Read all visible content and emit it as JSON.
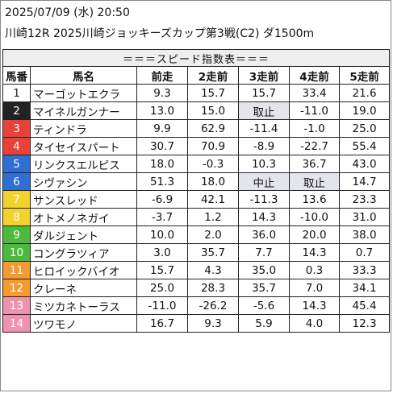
{
  "header": {
    "line1": "2025/07/09 (水) 20:50",
    "line2": "川崎12R 2025川崎ジョッキーズカップ第3戦(C2) ダ1500m"
  },
  "table": {
    "banner": "＝＝＝スピード指数表＝＝＝",
    "columns": [
      "馬番",
      "馬名",
      "前走",
      "2走前",
      "3走前",
      "4走前",
      "5走前"
    ],
    "rows": [
      {
        "num": "1",
        "name": "マーゴットエクラ",
        "v": [
          "9.3",
          "15.7",
          "15.7",
          "33.4",
          "21.6"
        ],
        "color": "#ffffff",
        "textColor": "#222222"
      },
      {
        "num": "2",
        "name": "マイネルガンナー",
        "v": [
          "13.0",
          "15.0",
          "取止",
          "-11.0",
          "19.0"
        ],
        "color": "#222222",
        "textColor": "#ffffff"
      },
      {
        "num": "3",
        "name": "ティンドラ",
        "v": [
          "9.9",
          "62.9",
          "-11.4",
          "-1.0",
          "25.0"
        ],
        "color": "#e8413a",
        "textColor": "#ffffff"
      },
      {
        "num": "4",
        "name": "タイセイスパート",
        "v": [
          "30.7",
          "70.9",
          "-8.9",
          "-22.7",
          "55.4"
        ],
        "color": "#e8413a",
        "textColor": "#ffffff"
      },
      {
        "num": "5",
        "name": "リンクスエルピス",
        "v": [
          "18.0",
          "-0.3",
          "10.3",
          "36.7",
          "43.0"
        ],
        "color": "#2e6fd1",
        "textColor": "#ffffff"
      },
      {
        "num": "6",
        "name": "シヴァシン",
        "v": [
          "51.3",
          "18.0",
          "中止",
          "取止",
          "14.7"
        ],
        "color": "#2e6fd1",
        "textColor": "#ffffff"
      },
      {
        "num": "7",
        "name": "サンスレッド",
        "v": [
          "-6.9",
          "42.1",
          "-11.3",
          "13.6",
          "23.3"
        ],
        "color": "#f2d22e",
        "textColor": "#ffffff"
      },
      {
        "num": "8",
        "name": "オトメノネガイ",
        "v": [
          "-3.7",
          "1.2",
          "14.3",
          "-10.0",
          "31.0"
        ],
        "color": "#f2d22e",
        "textColor": "#ffffff"
      },
      {
        "num": "9",
        "name": "ダルジェント",
        "v": [
          "10.0",
          "2.0",
          "36.0",
          "20.0",
          "38.0"
        ],
        "color": "#4cba3c",
        "textColor": "#ffffff"
      },
      {
        "num": "10",
        "name": "コングラツィア",
        "v": [
          "3.0",
          "35.7",
          "7.7",
          "14.3",
          "0.7"
        ],
        "color": "#4cba3c",
        "textColor": "#ffffff"
      },
      {
        "num": "11",
        "name": "ヒロイックバイオ",
        "v": [
          "15.7",
          "4.3",
          "35.0",
          "0.3",
          "33.3"
        ],
        "color": "#f39a33",
        "textColor": "#ffffff"
      },
      {
        "num": "12",
        "name": "クレーネ",
        "v": [
          "25.0",
          "28.3",
          "35.7",
          "7.0",
          "34.1"
        ],
        "color": "#f39a33",
        "textColor": "#ffffff"
      },
      {
        "num": "13",
        "name": "ミツカネトーラス",
        "v": [
          "-11.0",
          "-26.2",
          "-5.6",
          "14.3",
          "45.4"
        ],
        "color": "#ee92b0",
        "textColor": "#ffffff"
      },
      {
        "num": "14",
        "name": "ツワモノ",
        "v": [
          "16.7",
          "9.3",
          "5.9",
          "4.0",
          "12.3"
        ],
        "color": "#ee92b0",
        "textColor": "#ffffff"
      }
    ]
  }
}
